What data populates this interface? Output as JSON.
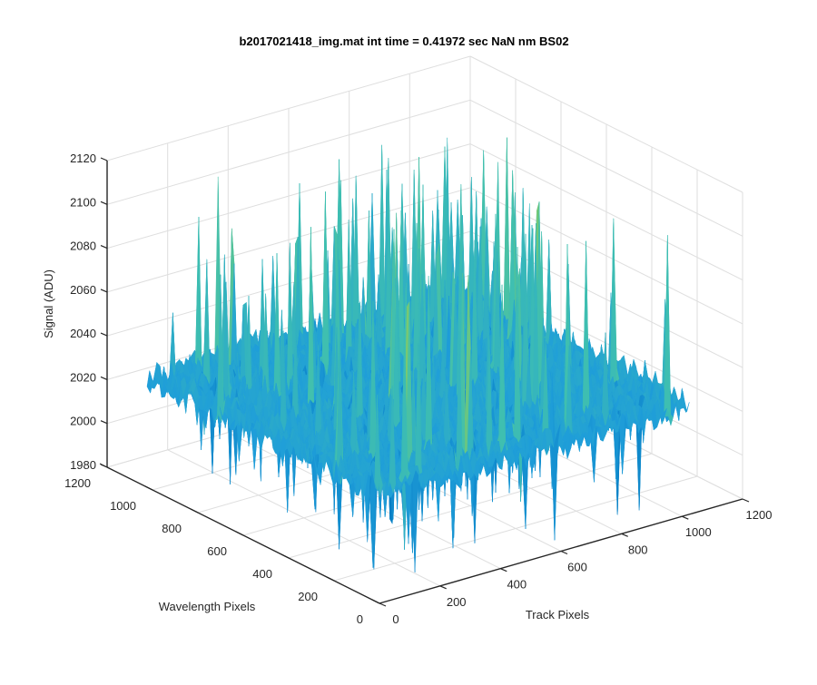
{
  "chart_data": {
    "type": "surface",
    "title": "b2017021418_img.mat int time = 0.41972 sec  NaN nm BS02",
    "xlabel": "Track Pixels",
    "ylabel": "Wavelength Pixels",
    "zlabel": "Signal (ADU)",
    "xlim": [
      0,
      1200
    ],
    "ylim": [
      0,
      1200
    ],
    "zlim": [
      1980,
      2120
    ],
    "x_ticks": [
      "0",
      "200",
      "400",
      "600",
      "800",
      "1000",
      "1200"
    ],
    "y_ticks": [
      "0",
      "200",
      "400",
      "600",
      "800",
      "1000",
      "1200"
    ],
    "z_ticks": [
      "1980",
      "2000",
      "2020",
      "2040",
      "2060",
      "2080",
      "2100",
      "2120"
    ],
    "data_extent": {
      "x": [
        0,
        1024
      ],
      "y": [
        0,
        1024
      ]
    },
    "signal_baseline": 2030,
    "signal_range": [
      1980,
      2115
    ],
    "colormap": [
      "#0072bd",
      "#1f9ed9",
      "#3fbfb0",
      "#7fca6a",
      "#d6c13c"
    ],
    "grid": true,
    "view": "3d perspective"
  }
}
